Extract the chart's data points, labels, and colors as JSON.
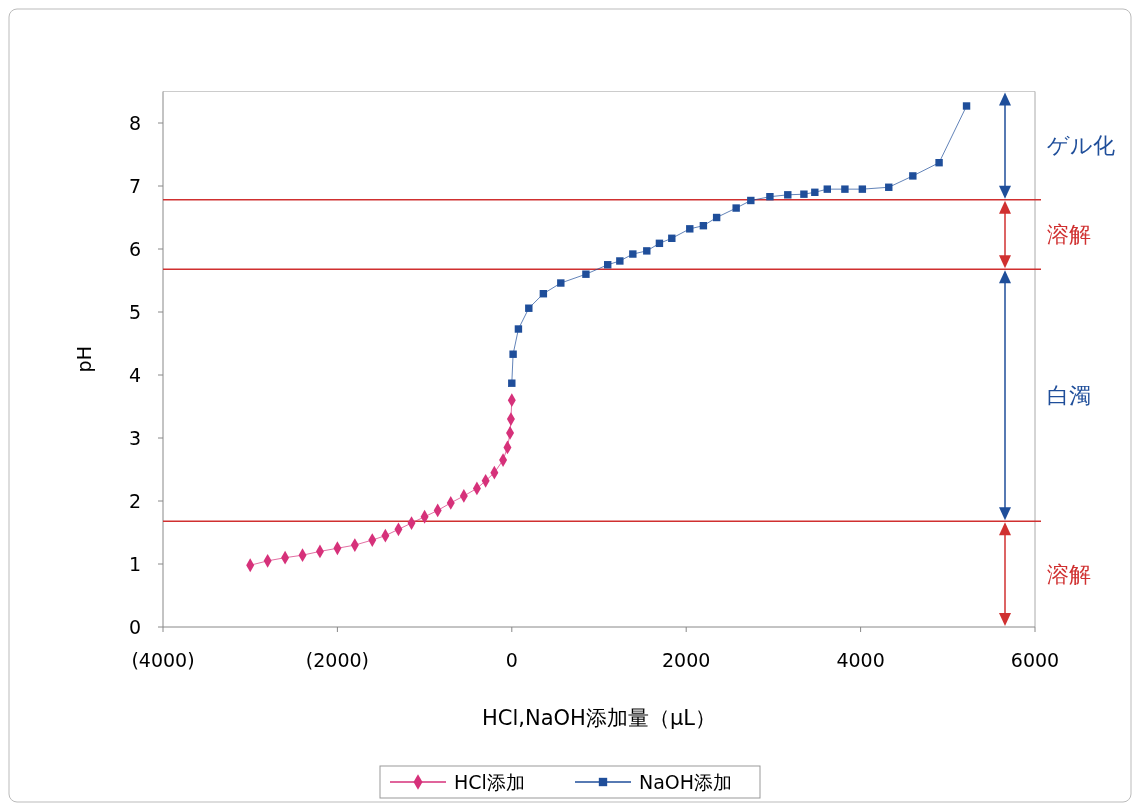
{
  "chart_data": {
    "type": "line",
    "xlabel": "HCl,NaOH添加量（μL）",
    "ylabel": "pH",
    "xlim": [
      -4000,
      6000
    ],
    "xticks": [
      {
        "value": -4000,
        "label": "(4000)"
      },
      {
        "value": -2000,
        "label": "(2000)"
      },
      0,
      2000,
      4000,
      6000
    ],
    "ylim": [
      0,
      8.5
    ],
    "yticks": [
      0,
      1,
      2,
      3,
      4,
      5,
      6,
      7,
      8
    ],
    "grid": false,
    "legend": "bottom",
    "line_style": "solid",
    "series": [
      {
        "name": "HCl添加",
        "color": "#d6317a",
        "marker": "diamond",
        "x": [
          -3000,
          -2800,
          -2600,
          -2400,
          -2200,
          -2000,
          -1800,
          -1600,
          -1450,
          -1300,
          -1150,
          -1000,
          -850,
          -700,
          -550,
          -400,
          -300,
          -200,
          -100,
          -50,
          -20,
          -10,
          0
        ],
        "values": [
          0.98,
          1.05,
          1.1,
          1.14,
          1.2,
          1.25,
          1.3,
          1.38,
          1.45,
          1.55,
          1.65,
          1.75,
          1.85,
          1.97,
          2.08,
          2.2,
          2.32,
          2.45,
          2.65,
          2.85,
          3.08,
          3.3,
          3.6
        ]
      },
      {
        "name": "NaOH添加",
        "color": "#1f4e9a",
        "marker": "square",
        "x": [
          0,
          15,
          76,
          195,
          362,
          562,
          850,
          1100,
          1239,
          1388,
          1548,
          1693,
          1835,
          2041,
          2197,
          2349,
          2573,
          2741,
          2960,
          3165,
          3350,
          3475,
          3618,
          3820,
          4020,
          4323,
          4599,
          4900,
          5215
        ],
        "values": [
          3.87,
          4.33,
          4.73,
          5.06,
          5.29,
          5.46,
          5.6,
          5.75,
          5.81,
          5.92,
          5.97,
          6.09,
          6.17,
          6.32,
          6.37,
          6.5,
          6.65,
          6.77,
          6.83,
          6.86,
          6.87,
          6.9,
          6.95,
          6.95,
          6.95,
          6.98,
          7.16,
          7.37,
          8.27
        ]
      }
    ],
    "ref_lines": [
      {
        "axis": "y",
        "value": 6.78,
        "color": "#d03030"
      },
      {
        "axis": "y",
        "value": 5.68,
        "color": "#d03030"
      },
      {
        "axis": "y",
        "value": 1.68,
        "color": "#d03030"
      }
    ],
    "annotations": [
      "ゲル化",
      "溶解",
      "白濁",
      "溶解"
    ]
  }
}
